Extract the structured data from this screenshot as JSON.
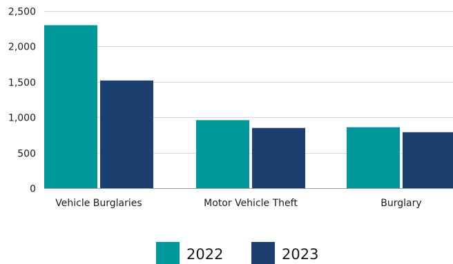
{
  "chart_data": {
    "type": "bar",
    "title": "",
    "xlabel": "",
    "ylabel": "",
    "categories": [
      "Vehicle Burglaries",
      "Motor Vehicle Theft",
      "Burglary"
    ],
    "series": [
      {
        "name": "2022",
        "color": "#00979a",
        "values": [
          2300,
          960,
          860
        ]
      },
      {
        "name": "2023",
        "color": "#1b3f6e",
        "values": [
          1520,
          850,
          790
        ]
      }
    ],
    "ylim": [
      0,
      2500
    ],
    "yticks": [
      0,
      500,
      1000,
      1500,
      2000,
      2500
    ],
    "ytick_labels": [
      "0",
      "500",
      "1,000",
      "1,500",
      "2,000",
      "2,500"
    ],
    "grid": true,
    "legend": "bottom-center"
  }
}
